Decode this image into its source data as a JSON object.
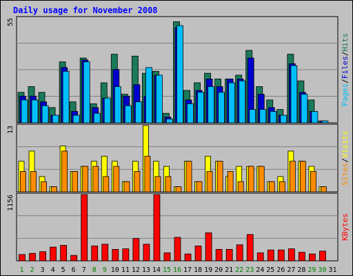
{
  "chart_data": {
    "type": "bar",
    "title": "Daily usage for November 2008",
    "categories": [
      "1",
      "2",
      "3",
      "4",
      "5",
      "6",
      "7",
      "8",
      "9",
      "10",
      "11",
      "12",
      "13",
      "14",
      "15",
      "16",
      "17",
      "18",
      "19",
      "20",
      "21",
      "22",
      "23",
      "24",
      "25",
      "26",
      "27",
      "28",
      "29",
      "30",
      "31"
    ],
    "weekend_days": [
      "1",
      "2",
      "8",
      "9",
      "15",
      "16",
      "22",
      "23",
      "29",
      "30"
    ],
    "day_color": "#000000",
    "weekend_color": "#008000",
    "panels": [
      {
        "name": "pages-files-hits",
        "ymax_label": "55",
        "ylim": [
          0,
          55
        ],
        "legend": [
          {
            "text": "Pages",
            "color": "#00bfff"
          },
          {
            "text": "/",
            "color": "#000000"
          },
          {
            "text": "Files",
            "color": "#0000cd"
          },
          {
            "text": "/",
            "color": "#000000"
          },
          {
            "text": "Hits",
            "color": "#1a7a5a"
          }
        ],
        "series": [
          {
            "name": "Hits",
            "color": "#1a7a5a",
            "values": [
              16,
              19,
              16,
              8,
              32,
              11,
              34,
              10,
              21,
              36,
              15,
              35,
              26,
              27,
              5,
              53,
              17,
              21,
              26,
              23,
              23,
              25,
              38,
              19,
              12,
              7,
              36,
              22,
              12,
              1,
              0
            ]
          },
          {
            "name": "Files",
            "color": "#0000cd",
            "values": [
              14,
              14,
              11,
              4,
              29,
              6,
              33,
              8,
              13,
              28,
              14,
              20,
              14,
              25,
              3,
              50,
              12,
              17,
              23,
              19,
              23,
              23,
              34,
              15,
              8,
              4,
              31,
              16,
              6,
              1,
              0
            ]
          },
          {
            "name": "Pages",
            "color": "#00bfff",
            "values": [
              12,
              12,
              9,
              4,
              27,
              4,
              32,
              5,
              13,
              19,
              9,
              11,
              29,
              25,
              2,
              51,
              10,
              16,
              19,
              16,
              21,
              22,
              7,
              7,
              6,
              4,
              30,
              15,
              6,
              1,
              0
            ]
          }
        ]
      },
      {
        "name": "visits-sites",
        "ymax_label": "13",
        "ylim": [
          0,
          13
        ],
        "legend": [
          {
            "text": "Sites",
            "color": "#ff8c00"
          },
          {
            "text": "/",
            "color": "#000000"
          },
          {
            "text": "Visits",
            "color": "#ffff00"
          }
        ],
        "series": [
          {
            "name": "Visits",
            "color": "#ffff00",
            "values": [
              6,
              8,
              3,
              1,
              9,
              4,
              5,
              6,
              7,
              6,
              2,
              6,
              13,
              6,
              5,
              1,
              6,
              2,
              7,
              6,
              3,
              5,
              5,
              5,
              2,
              3,
              8,
              6,
              5,
              1,
              0
            ]
          },
          {
            "name": "Sites",
            "color": "#ff8c00",
            "values": [
              4,
              4,
              2,
              1,
              8,
              4,
              5,
              5,
              3,
              5,
              2,
              4,
              7,
              3,
              3,
              1,
              6,
              2,
              4,
              6,
              4,
              2,
              5,
              5,
              2,
              2,
              6,
              6,
              4,
              1,
              0
            ]
          }
        ]
      },
      {
        "name": "kbytes",
        "ymax_label": "1156",
        "ylim": [
          0,
          1156
        ],
        "legend": [
          {
            "text": "KBytes",
            "color": "#ff0000"
          }
        ],
        "series": [
          {
            "name": "KBytes",
            "color": "#ff0000",
            "values": [
              110,
              130,
              160,
              240,
              270,
              95,
              1156,
              260,
              290,
              200,
              210,
              390,
              290,
              1156,
              140,
              410,
              120,
              260,
              490,
              200,
              200,
              280,
              460,
              140,
              190,
              190,
              210,
              150,
              120,
              170,
              0
            ]
          }
        ]
      }
    ]
  }
}
